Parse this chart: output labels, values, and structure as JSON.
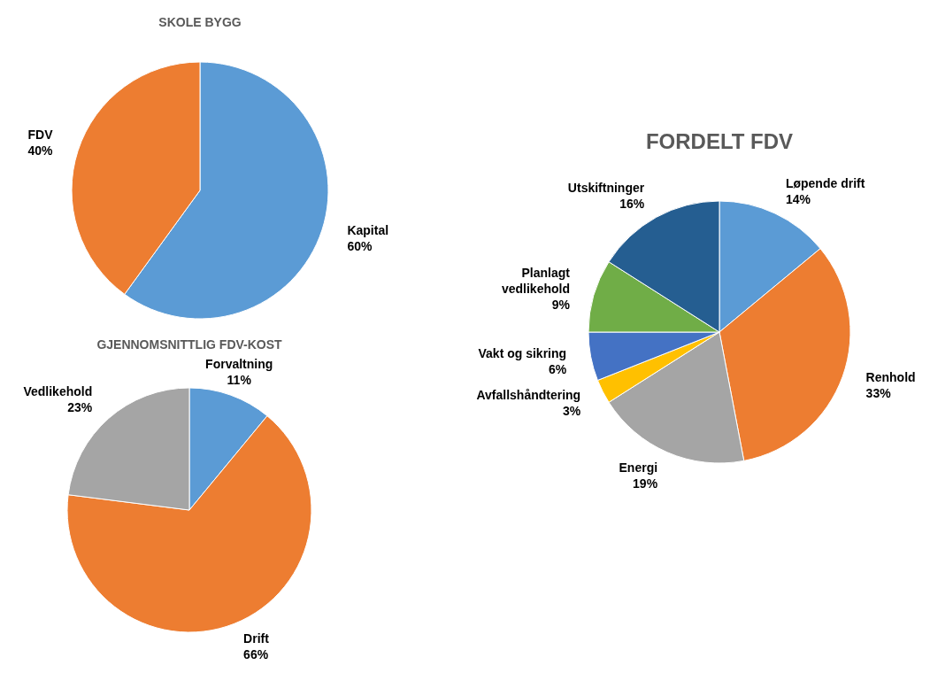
{
  "chart_data": [
    {
      "type": "pie",
      "title": "SKOLE BYGG",
      "categories": [
        "Kapital",
        "FDV"
      ],
      "values": [
        60,
        40
      ],
      "value_labels": [
        "60%",
        "40%"
      ],
      "colors": [
        "#5b9bd5",
        "#ed7d31"
      ]
    },
    {
      "type": "pie",
      "title": "GJENNOMSNITTLIG FDV-KOST",
      "categories": [
        "Forvaltning",
        "Drift",
        "Vedlikehold"
      ],
      "values": [
        11,
        66,
        23
      ],
      "value_labels": [
        "11%",
        "66%",
        "23%"
      ],
      "colors": [
        "#5b9bd5",
        "#ed7d31",
        "#a5a5a5"
      ]
    },
    {
      "type": "pie",
      "title": "FORDELT FDV",
      "categories": [
        "Løpende drift",
        "Renhold",
        "Energi",
        "Avfallshåndtering",
        "Vakt og sikring",
        "Planlagt vedlikehold",
        "Utskiftninger"
      ],
      "values": [
        14,
        33,
        19,
        3,
        6,
        9,
        16
      ],
      "value_labels": [
        "14%",
        "33%",
        "19%",
        "3%",
        "6%",
        "9%",
        "16%"
      ],
      "colors": [
        "#5b9bd5",
        "#ed7d31",
        "#a5a5a5",
        "#ffc000",
        "#4472c4",
        "#70ad47",
        "#255e91"
      ]
    }
  ]
}
